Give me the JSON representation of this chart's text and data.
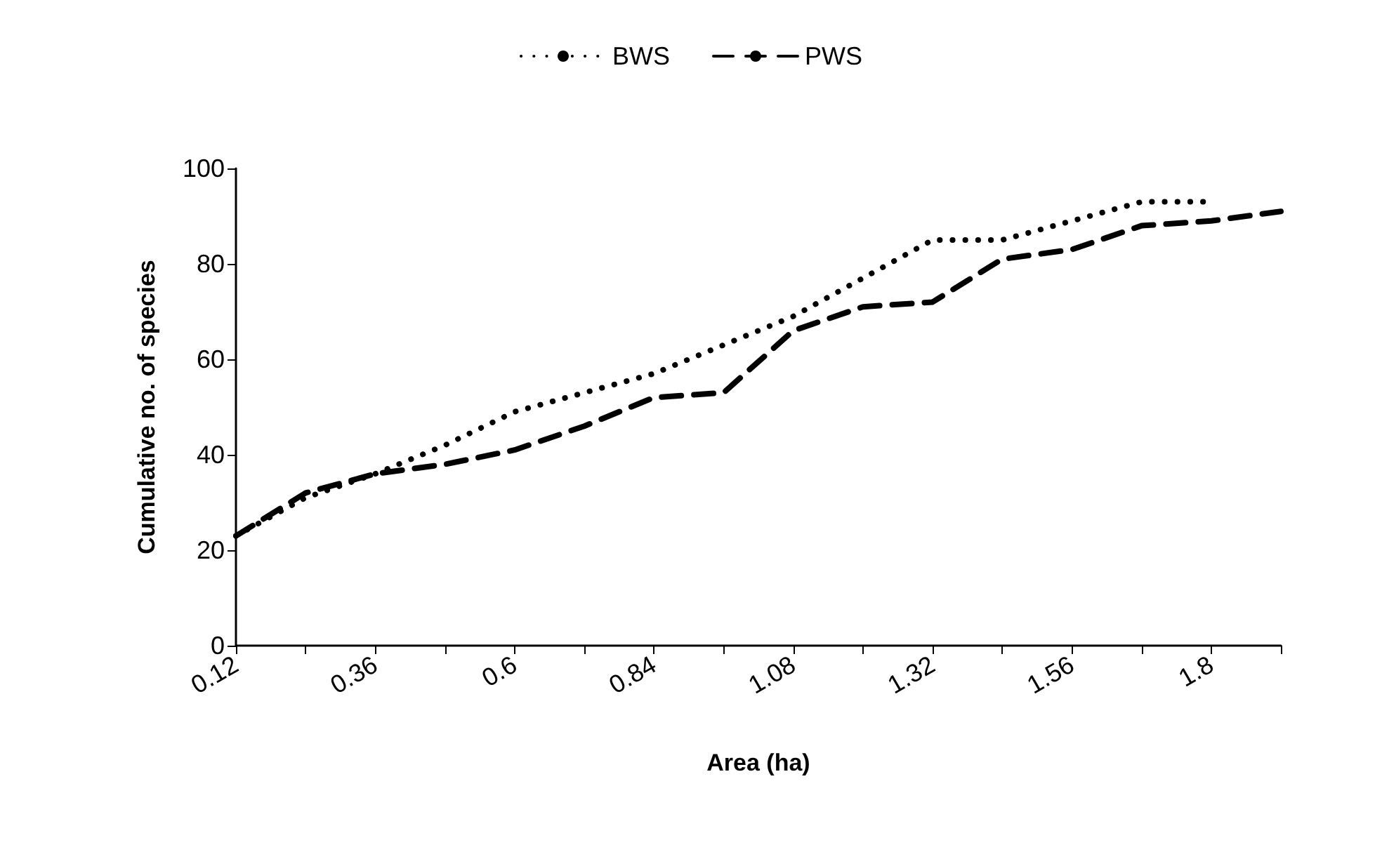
{
  "chart_data": {
    "type": "line",
    "xlabel": "Area (ha)",
    "ylabel": "Cumulative no. of species",
    "categories": [
      "0.12",
      null,
      "0.36",
      null,
      "0.6",
      null,
      "0.84",
      null,
      "1.08",
      null,
      "1.32",
      null,
      "1.56",
      null,
      "1.8",
      null
    ],
    "series": [
      {
        "name": "BWS",
        "color": "#000000",
        "line_style": "dotted",
        "values": [
          23,
          31,
          36,
          42,
          49,
          53,
          57,
          63,
          69,
          77,
          85,
          85,
          89,
          93,
          93,
          null
        ]
      },
      {
        "name": "PWS",
        "color": "#000000",
        "line_style": "dashed",
        "values": [
          23,
          32,
          36,
          38,
          41,
          46,
          52,
          53,
          66,
          71,
          72,
          81,
          83,
          88,
          89,
          91
        ]
      }
    ],
    "ylim": [
      0,
      100
    ],
    "yticks": [
      0,
      20,
      40,
      60,
      80,
      100
    ],
    "grid": false,
    "legend": "top",
    "marker": "none"
  }
}
